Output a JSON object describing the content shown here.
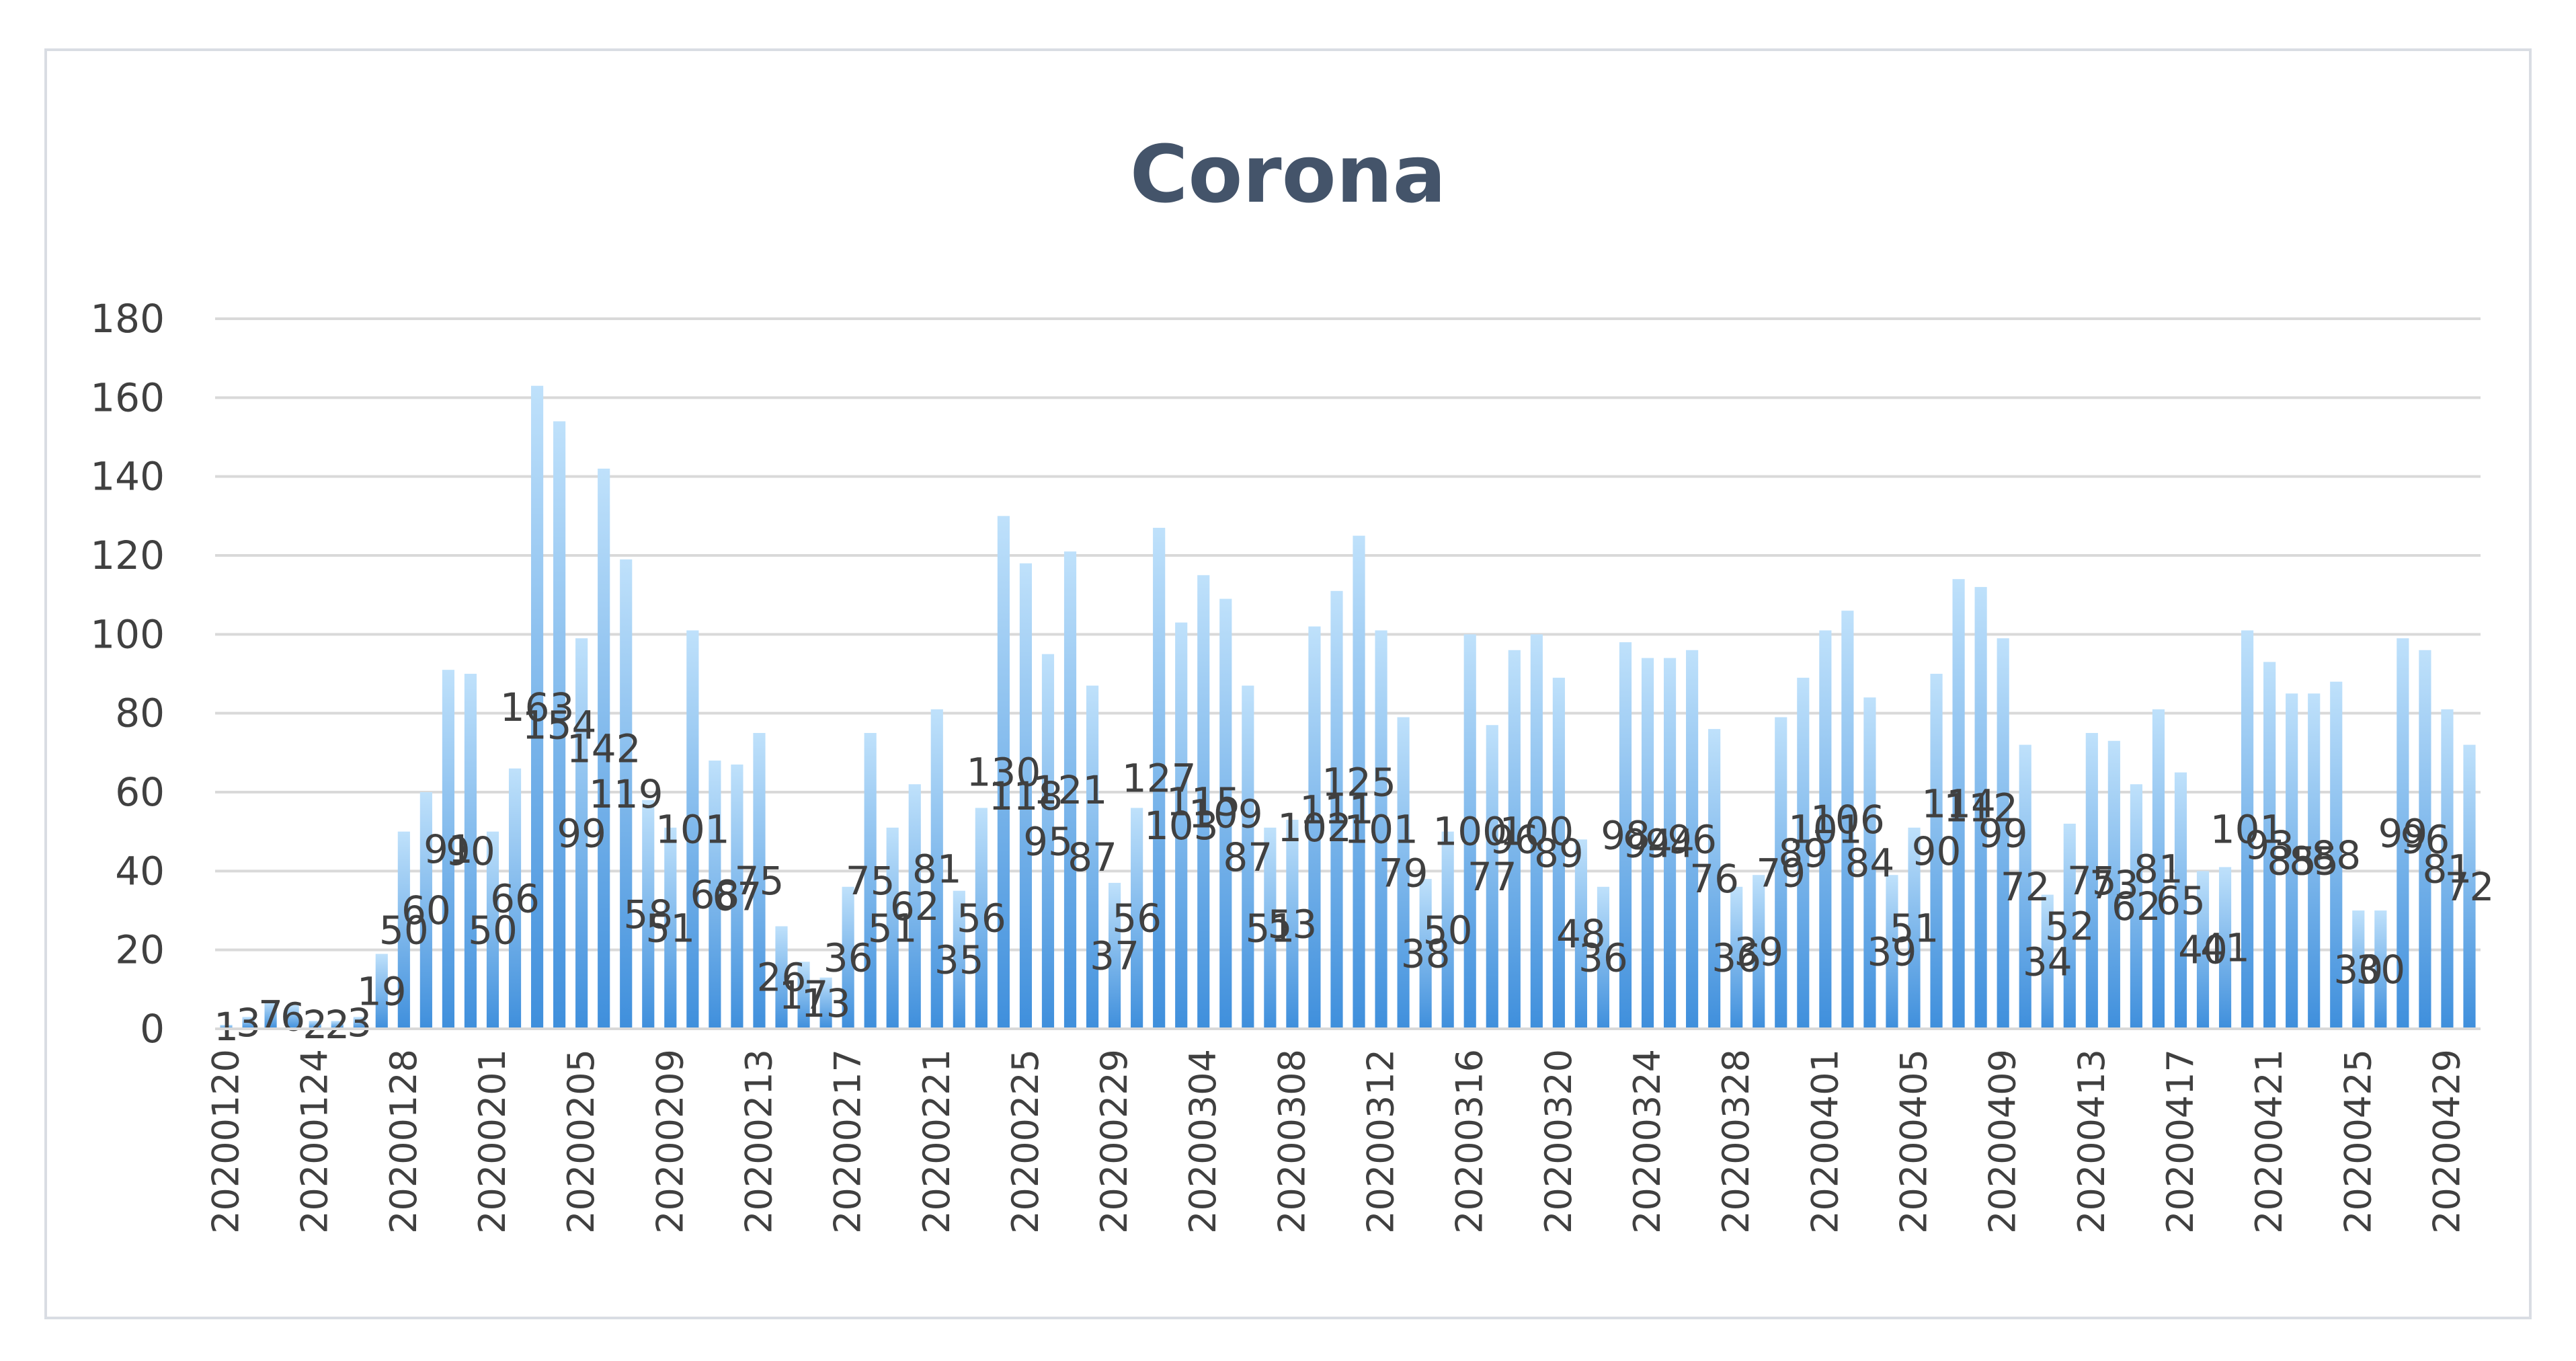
{
  "chart_data": {
    "type": "bar",
    "title": "Corona",
    "xlabel": "",
    "ylabel": "",
    "ylim": [
      0,
      180
    ],
    "yticks": [
      0,
      20,
      40,
      60,
      80,
      100,
      120,
      140,
      160,
      180
    ],
    "grid": "horizontal",
    "legend": "none",
    "bar_color_top": "#bfe1fb",
    "bar_color_bottom": "#3f8fdc",
    "categories": [
      "20200120",
      "20200121",
      "20200122",
      "20200123",
      "20200124",
      "20200125",
      "20200126",
      "20200127",
      "20200128",
      "20200129",
      "20200130",
      "20200131",
      "20200201",
      "20200202",
      "20200203",
      "20200204",
      "20200205",
      "20200206",
      "20200207",
      "20200208",
      "20200209",
      "20200210",
      "20200211",
      "20200212",
      "20200213",
      "20200214",
      "20200215",
      "20200216",
      "20200217",
      "20200218",
      "20200219",
      "20200220",
      "20200221",
      "20200222",
      "20200223",
      "20200224",
      "20200225",
      "20200226",
      "20200227",
      "20200228",
      "20200229",
      "20200301",
      "20200302",
      "20200303",
      "20200304",
      "20200305",
      "20200306",
      "20200307",
      "20200308",
      "20200309",
      "20200310",
      "20200311",
      "20200312",
      "20200313",
      "20200314",
      "20200315",
      "20200316",
      "20200317",
      "20200318",
      "20200319",
      "20200320",
      "20200321",
      "20200322",
      "20200323",
      "20200324",
      "20200325",
      "20200326",
      "20200327",
      "20200328",
      "20200329",
      "20200330",
      "20200331",
      "20200401",
      "20200402",
      "20200403",
      "20200404",
      "20200405",
      "20200406",
      "20200407",
      "20200408",
      "20200409",
      "20200410",
      "20200411",
      "20200412",
      "20200413",
      "20200414",
      "20200415",
      "20200416",
      "20200417",
      "20200418",
      "20200419",
      "20200420",
      "20200421",
      "20200422",
      "20200423",
      "20200424",
      "20200425",
      "20200426",
      "20200427",
      "20200428",
      "20200429",
      "20200430"
    ],
    "tick_labels": [
      "20200120",
      "20200124",
      "20200128",
      "20200201",
      "20200205",
      "20200209",
      "20200213",
      "20200217",
      "20200221",
      "20200225",
      "20200229",
      "20200304",
      "20200308",
      "20200312",
      "20200316",
      "20200320",
      "20200324",
      "20200328",
      "20200401",
      "20200405",
      "20200409",
      "20200413",
      "20200417",
      "20200421",
      "20200425",
      "20200429"
    ],
    "values": [
      1,
      3,
      7,
      6,
      2,
      2,
      3,
      19,
      50,
      60,
      91,
      90,
      50,
      66,
      163,
      154,
      99,
      142,
      119,
      58,
      51,
      101,
      68,
      67,
      75,
      26,
      17,
      13,
      36,
      75,
      51,
      62,
      81,
      35,
      56,
      130,
      118,
      95,
      121,
      87,
      37,
      56,
      127,
      103,
      115,
      109,
      87,
      51,
      53,
      102,
      111,
      125,
      101,
      79,
      38,
      50,
      100,
      77,
      96,
      100,
      89,
      48,
      36,
      98,
      94,
      94,
      96,
      76,
      36,
      39,
      79,
      89,
      101,
      106,
      84,
      39,
      51,
      90,
      114,
      112,
      99,
      72,
      34,
      52,
      75,
      73,
      62,
      81,
      65,
      40,
      41,
      101,
      93,
      85,
      85,
      88,
      30,
      30,
      99,
      96,
      81,
      72
    ]
  }
}
